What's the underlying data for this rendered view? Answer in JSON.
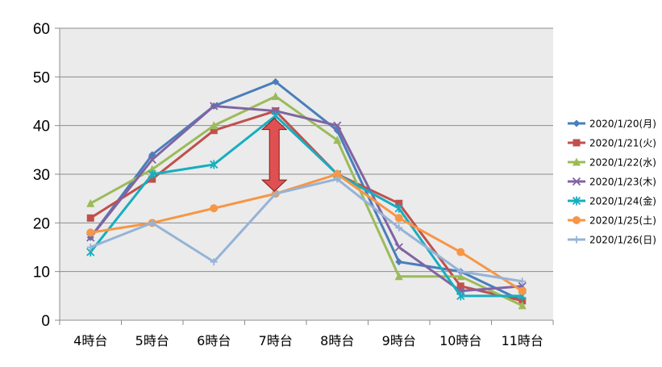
{
  "chart_data": {
    "type": "line",
    "title": "",
    "xlabel": "",
    "ylabel": "",
    "categories": [
      "4時台",
      "5時台",
      "6時台",
      "7時台",
      "8時台",
      "9時台",
      "10時台",
      "11時台"
    ],
    "ylim": [
      0,
      60
    ],
    "yticks": [
      0,
      10,
      20,
      30,
      40,
      50,
      60
    ],
    "grid": true,
    "legend_position": "right",
    "plot_background": "#ebebeb",
    "series": [
      {
        "name": "2020/1/20(月)",
        "color": "#4a7ebb",
        "marker": "diamond",
        "values": [
          17,
          34,
          44,
          49,
          39,
          12,
          10,
          4
        ]
      },
      {
        "name": "2020/1/21(火)",
        "color": "#c0504d",
        "marker": "square",
        "values": [
          21,
          29,
          39,
          43,
          30,
          24,
          7,
          4
        ]
      },
      {
        "name": "2020/1/22(水)",
        "color": "#9bbb59",
        "marker": "triangle",
        "values": [
          24,
          31,
          40,
          46,
          37,
          9,
          9,
          3
        ]
      },
      {
        "name": "2020/1/23(木)",
        "color": "#8064a2",
        "marker": "x",
        "values": [
          17,
          33,
          44,
          43,
          40,
          15,
          6,
          7
        ]
      },
      {
        "name": "2020/1/24(金)",
        "color": "#17aebf",
        "marker": "star",
        "values": [
          14,
          30,
          32,
          42,
          30,
          23,
          5,
          5
        ]
      },
      {
        "name": "2020/1/25(土)",
        "color": "#f79646",
        "marker": "circle",
        "values": [
          18,
          20,
          23,
          26,
          30,
          21,
          14,
          6
        ]
      },
      {
        "name": "2020/1/26(日)",
        "color": "#95b3d7",
        "marker": "plus",
        "values": [
          15,
          20,
          12,
          26,
          29,
          19,
          10,
          8
        ]
      }
    ],
    "annotations": [
      {
        "type": "double-arrow",
        "category": "7時台",
        "from": 26,
        "to": 42,
        "color": "#e05050"
      }
    ]
  }
}
